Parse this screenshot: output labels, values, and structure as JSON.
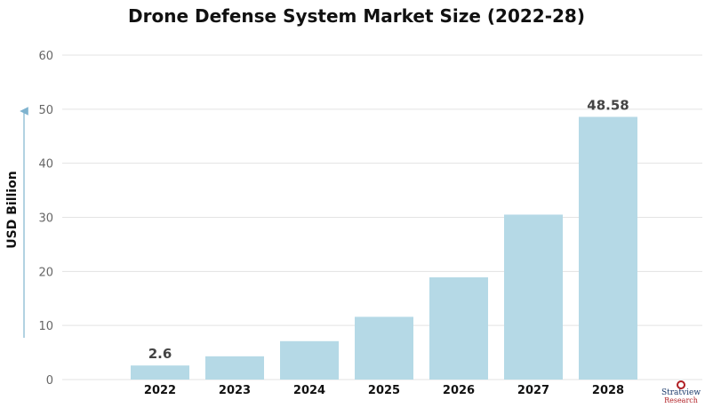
{
  "chart_data": {
    "type": "bar",
    "title": "Drone Defense System Market Size (2022-28)",
    "xlabel": "",
    "ylabel": "USD Billion",
    "categories": [
      "2022",
      "2023",
      "2024",
      "2025",
      "2026",
      "2027",
      "2028"
    ],
    "values": [
      2.6,
      4.3,
      7.1,
      11.6,
      18.9,
      30.5,
      48.58
    ],
    "data_labels": {
      "0": "2.6",
      "6": "48.58"
    },
    "ylim": [
      0,
      60
    ],
    "yticks": [
      0,
      10,
      20,
      30,
      40,
      50,
      60
    ],
    "grid": true,
    "bar_color": "#b5d9e6",
    "grid_color": "#e3e3e3",
    "axis_arrow_color": "#7fb3cf"
  },
  "logo": {
    "name": "Stratview",
    "tagline": "Research"
  }
}
